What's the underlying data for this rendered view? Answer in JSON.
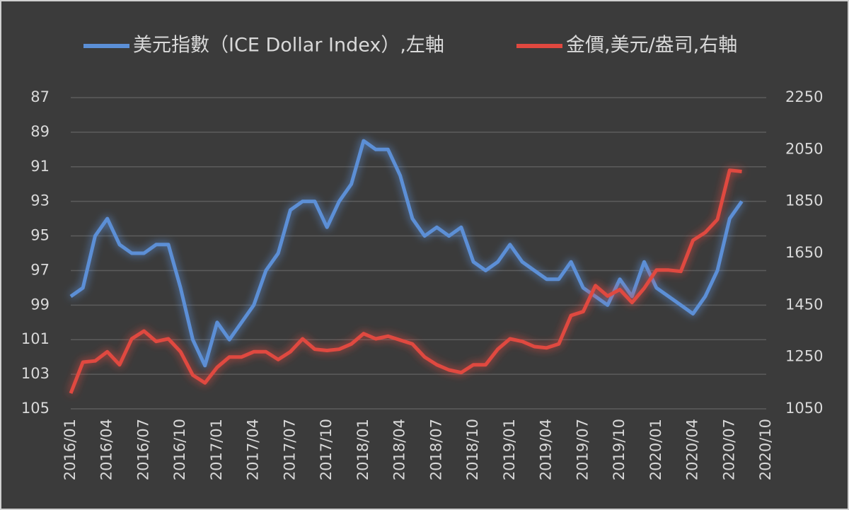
{
  "chart_data": {
    "type": "line",
    "x": [
      "2016/01",
      null,
      null,
      "2016/04",
      null,
      null,
      "2016/07",
      null,
      null,
      "2016/10",
      null,
      null,
      "2017/01",
      null,
      null,
      "2017/04",
      null,
      null,
      "2017/07",
      null,
      null,
      "2017/10",
      null,
      null,
      "2018/01",
      null,
      null,
      "2018/04",
      null,
      null,
      "2018/07",
      null,
      null,
      "2018/10",
      null,
      null,
      "2019/01",
      null,
      null,
      "2019/04",
      null,
      null,
      "2019/07",
      null,
      null,
      "2019/10",
      null,
      null,
      "2020/01",
      null,
      null,
      "2020/04",
      null,
      null,
      "2020/07",
      null,
      null,
      "2020/10"
    ],
    "series": [
      {
        "name": "美元指數（ICE Dollar Index）,左軸",
        "color": "#5b8fd6",
        "values": [
          98.5,
          98,
          95,
          94,
          95.5,
          96,
          96,
          95.5,
          95.5,
          98,
          101,
          102.5,
          100,
          101,
          100,
          99,
          97,
          96,
          93.5,
          93,
          93,
          94.5,
          93,
          92,
          89.5,
          90,
          90,
          91.5,
          94,
          95,
          94.5,
          95,
          94.5,
          96.5,
          97,
          96.5,
          95.5,
          96.5,
          97,
          97.5,
          97.5,
          96.5,
          98,
          98.5,
          99,
          97.5,
          98.5,
          96.5,
          98,
          98.5,
          99,
          99.5,
          98.5,
          97,
          94,
          93,
          null,
          null
        ]
      },
      {
        "name": "金價,美元/盎司,右軸",
        "color": "#e0483f",
        "axis": "y2",
        "values": [
          1110,
          1230,
          1235,
          1270,
          1220,
          1320,
          1350,
          1310,
          1320,
          1270,
          1180,
          1150,
          1210,
          1250,
          1250,
          1270,
          1270,
          1240,
          1270,
          1320,
          1280,
          1275,
          1280,
          1300,
          1340,
          1320,
          1330,
          1315,
          1300,
          1250,
          1220,
          1200,
          1190,
          1220,
          1220,
          1280,
          1320,
          1310,
          1290,
          1285,
          1300,
          1410,
          1425,
          1525,
          1485,
          1510,
          1460,
          1515,
          1585,
          1585,
          1580,
          1700,
          1730,
          1780,
          1970,
          1965,
          null,
          null
        ]
      }
    ],
    "ylim": [
      87,
      105
    ],
    "yticks": [
      87,
      89,
      91,
      93,
      95,
      97,
      99,
      101,
      103,
      105
    ],
    "y_inverted": true,
    "y2lim": [
      1050,
      2250
    ],
    "y2ticks": [
      2250,
      2050,
      1850,
      1650,
      1450,
      1250,
      1050
    ],
    "grid": true,
    "legend": "top"
  }
}
